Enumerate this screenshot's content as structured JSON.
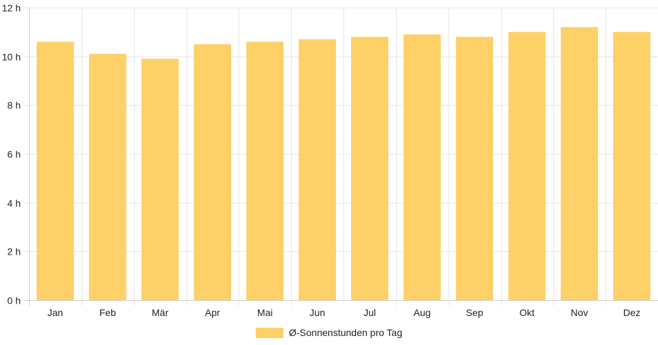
{
  "chart_data": {
    "type": "bar",
    "categories": [
      "Jan",
      "Feb",
      "Mär",
      "Apr",
      "Mai",
      "Jun",
      "Jul",
      "Aug",
      "Sep",
      "Okt",
      "Nov",
      "Dez"
    ],
    "series": [
      {
        "name": "Ø-Sonnenstunden pro Tag",
        "values": [
          10.6,
          10.1,
          9.9,
          10.5,
          10.6,
          10.7,
          10.8,
          10.9,
          10.8,
          11.0,
          11.2,
          11.0
        ],
        "color": "#fdd068"
      }
    ],
    "y_ticks": [
      "0 h",
      "2 h",
      "4 h",
      "6 h",
      "8 h",
      "10 h",
      "12 h"
    ],
    "ylim": [
      0,
      12
    ],
    "y_tick_step": 2,
    "grid": true,
    "legend_position": "bottom",
    "grid_color": "#e6e6e6",
    "axis_color": "#cccccc"
  }
}
